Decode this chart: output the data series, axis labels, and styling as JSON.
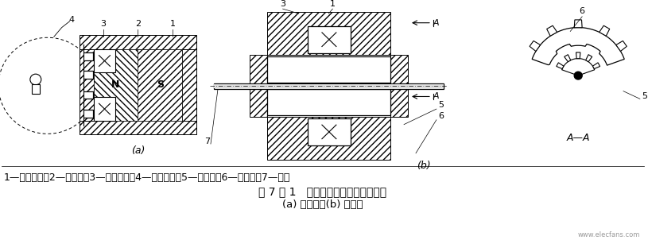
{
  "bg_color": "#ffffff",
  "label_line1": "1—永久磁铁；2—软磁铁；3—感应线圈；4—测量齿轮；5—内齿轮；6—外齿轮；7—转轴",
  "label_line2": "图 7 － 1   变磁通式磁电传感器结构图",
  "label_line3": "(a) 开磁路；(b) 闭磁路",
  "watermark": "www.elecfans.com",
  "fig_width": 8.15,
  "fig_height": 3.07,
  "dpi": 100
}
